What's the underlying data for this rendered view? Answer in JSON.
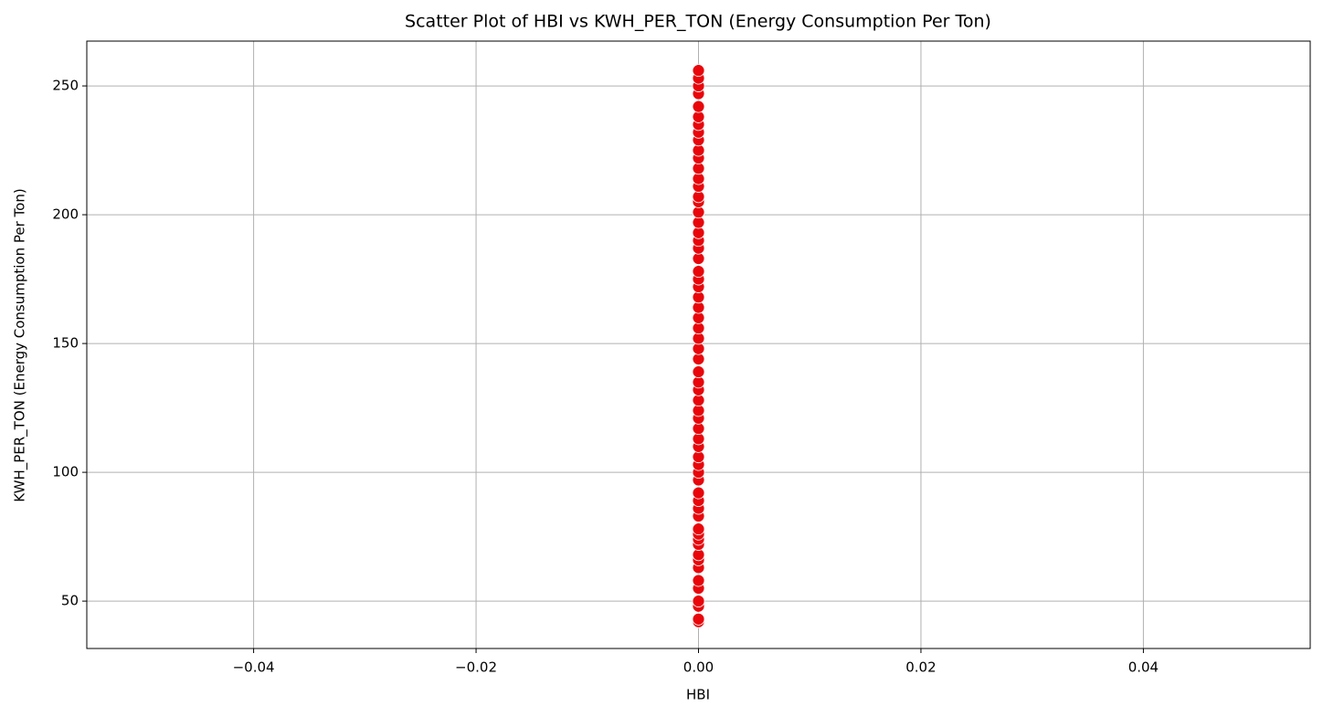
{
  "chart_data": {
    "type": "scatter",
    "title": "Scatter Plot of HBI vs KWH_PER_TON (Energy Consumption Per Ton)",
    "xlabel": "HBI",
    "ylabel": "KWH_PER_TON (Energy Consumption Per Ton)",
    "x": [
      0,
      0,
      0,
      0,
      0,
      0,
      0,
      0,
      0,
      0,
      0,
      0,
      0,
      0,
      0,
      0,
      0,
      0,
      0,
      0,
      0,
      0,
      0,
      0,
      0,
      0,
      0,
      0,
      0,
      0,
      0,
      0,
      0,
      0,
      0,
      0,
      0,
      0,
      0,
      0,
      0,
      0,
      0,
      0,
      0,
      0,
      0,
      0,
      0,
      0,
      0,
      0,
      0,
      0,
      0,
      0,
      0,
      0,
      0,
      0,
      0,
      0
    ],
    "values": [
      42,
      43,
      48,
      50,
      55,
      58,
      63,
      66,
      68,
      72,
      74,
      76,
      78,
      83,
      86,
      89,
      92,
      97,
      100,
      103,
      106,
      110,
      113,
      117,
      121,
      124,
      128,
      132,
      135,
      139,
      144,
      148,
      152,
      156,
      160,
      164,
      168,
      172,
      175,
      178,
      183,
      187,
      190,
      193,
      197,
      201,
      205,
      207,
      211,
      214,
      218,
      222,
      225,
      229,
      232,
      235,
      238,
      242,
      247,
      250,
      253,
      256
    ],
    "color": "#e8060b",
    "xlim": [
      -0.055,
      0.055
    ],
    "ylim": [
      31.6,
      267.4
    ],
    "xticks": [
      {
        "value": -0.04,
        "label": "−0.04"
      },
      {
        "value": -0.02,
        "label": "−0.02"
      },
      {
        "value": 0,
        "label": "0.00"
      },
      0.02,
      0.04
    ],
    "yticks": [
      50,
      100,
      150,
      200,
      250
    ],
    "grid": true
  }
}
